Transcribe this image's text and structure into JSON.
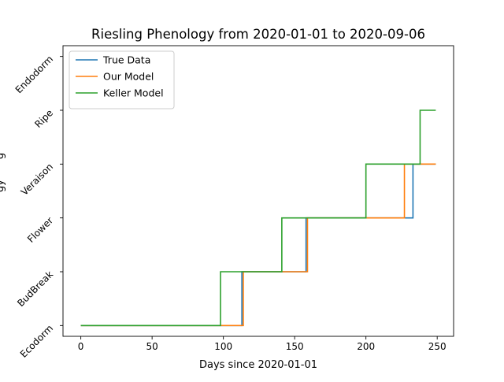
{
  "chart_data": {
    "type": "line",
    "title": "Riesling Phenology from 2020-01-01 to 2020-09-06",
    "xlabel": "Days since 2020-01-01",
    "ylabel_fragments": [
      "g",
      "gy"
    ],
    "xlim": [
      -12.5,
      261.5
    ],
    "ylim": [
      -0.2,
      5.2
    ],
    "x_ticks": [
      0,
      50,
      100,
      150,
      200,
      250
    ],
    "y_ticks": [
      {
        "value": 0,
        "label": "Ecodorm"
      },
      {
        "value": 1,
        "label": "BudBreak"
      },
      {
        "value": 2,
        "label": "Flower"
      },
      {
        "value": 3,
        "label": "Veraison"
      },
      {
        "value": 4,
        "label": "Ripe"
      },
      {
        "value": 5,
        "label": "Endodorm"
      }
    ],
    "legend_position": "top-left",
    "grid": false,
    "step": true,
    "series": [
      {
        "name": "True Data",
        "color": "#1f77b4",
        "x": [
          0,
          113,
          113,
          158,
          158,
          233,
          233,
          249
        ],
        "y": [
          0,
          0,
          1,
          1,
          2,
          2,
          3,
          3
        ]
      },
      {
        "name": "Our Model",
        "color": "#ff7f0e",
        "x": [
          0,
          114,
          114,
          159,
          159,
          227,
          227,
          249
        ],
        "y": [
          0,
          0,
          1,
          1,
          2,
          2,
          3,
          3
        ]
      },
      {
        "name": "Keller Model",
        "color": "#2ca02c",
        "x": [
          0,
          98,
          98,
          141,
          141,
          200,
          200,
          238,
          238,
          249
        ],
        "y": [
          0,
          0,
          1,
          1,
          2,
          2,
          3,
          3,
          4,
          4
        ]
      }
    ]
  }
}
